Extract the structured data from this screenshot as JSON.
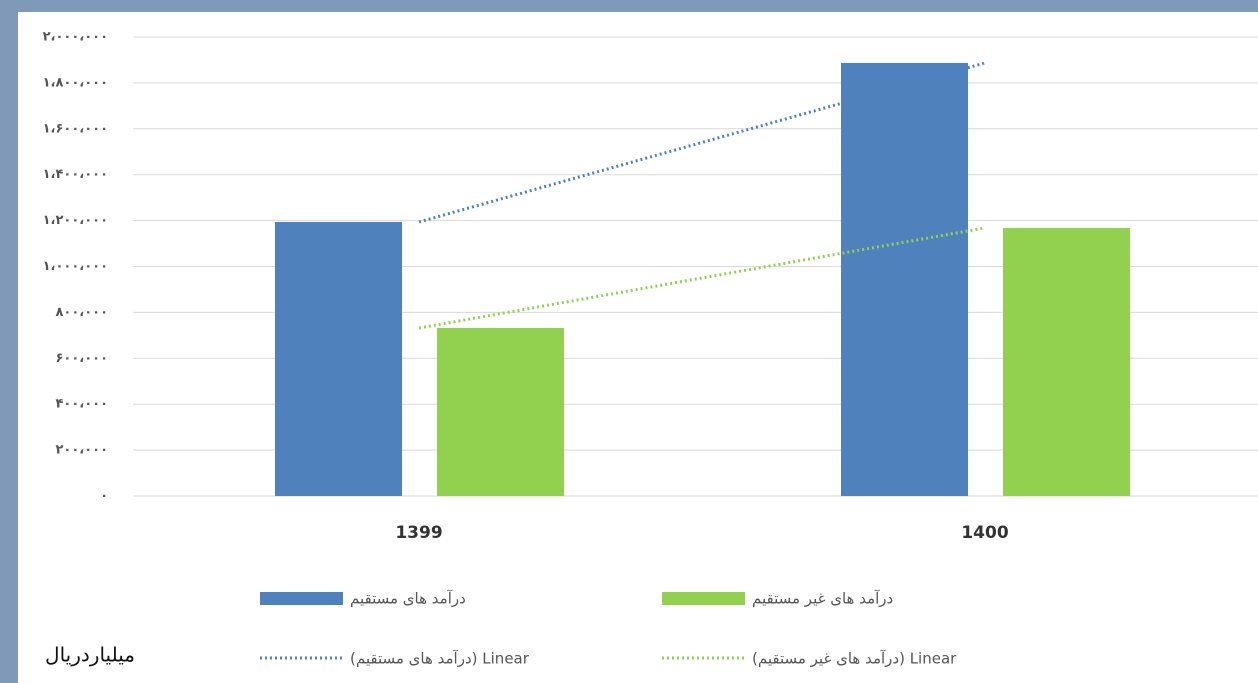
{
  "chart_data": {
    "type": "bar",
    "categories": [
      "1399",
      "1400"
    ],
    "series": [
      {
        "name": "درآمد های مستقیم",
        "color": "#4f81bd",
        "values": [
          1194000,
          1887000
        ]
      },
      {
        "name": "درآمد های غیر مستقیم",
        "color": "#92d050",
        "values": [
          732000,
          1168000
        ]
      }
    ],
    "trendlines": [
      {
        "name": "Linear (درآمد های مستقیم)",
        "series": 0
      },
      {
        "name": "Linear (درآمد های غیر مستقیم)",
        "series": 1
      }
    ],
    "ylim": [
      0,
      2000000
    ],
    "yticks": [
      {
        "value": 0,
        "label": "۰"
      },
      {
        "value": 200000,
        "label": "۲۰۰،۰۰۰"
      },
      {
        "value": 400000,
        "label": "۴۰۰،۰۰۰"
      },
      {
        "value": 600000,
        "label": "۶۰۰،۰۰۰"
      },
      {
        "value": 800000,
        "label": "۸۰۰،۰۰۰"
      },
      {
        "value": 1000000,
        "label": "۱،۰۰۰،۰۰۰"
      },
      {
        "value": 1200000,
        "label": "۱،۲۰۰،۰۰۰"
      },
      {
        "value": 1400000,
        "label": "۱،۴۰۰،۰۰۰"
      },
      {
        "value": 1600000,
        "label": "۱،۶۰۰،۰۰۰"
      },
      {
        "value": 1800000,
        "label": "۱،۸۰۰،۰۰۰"
      },
      {
        "value": 2000000,
        "label": "۲،۰۰۰،۰۰۰"
      }
    ],
    "grid": true,
    "unit_label": "میلیاردریال"
  }
}
